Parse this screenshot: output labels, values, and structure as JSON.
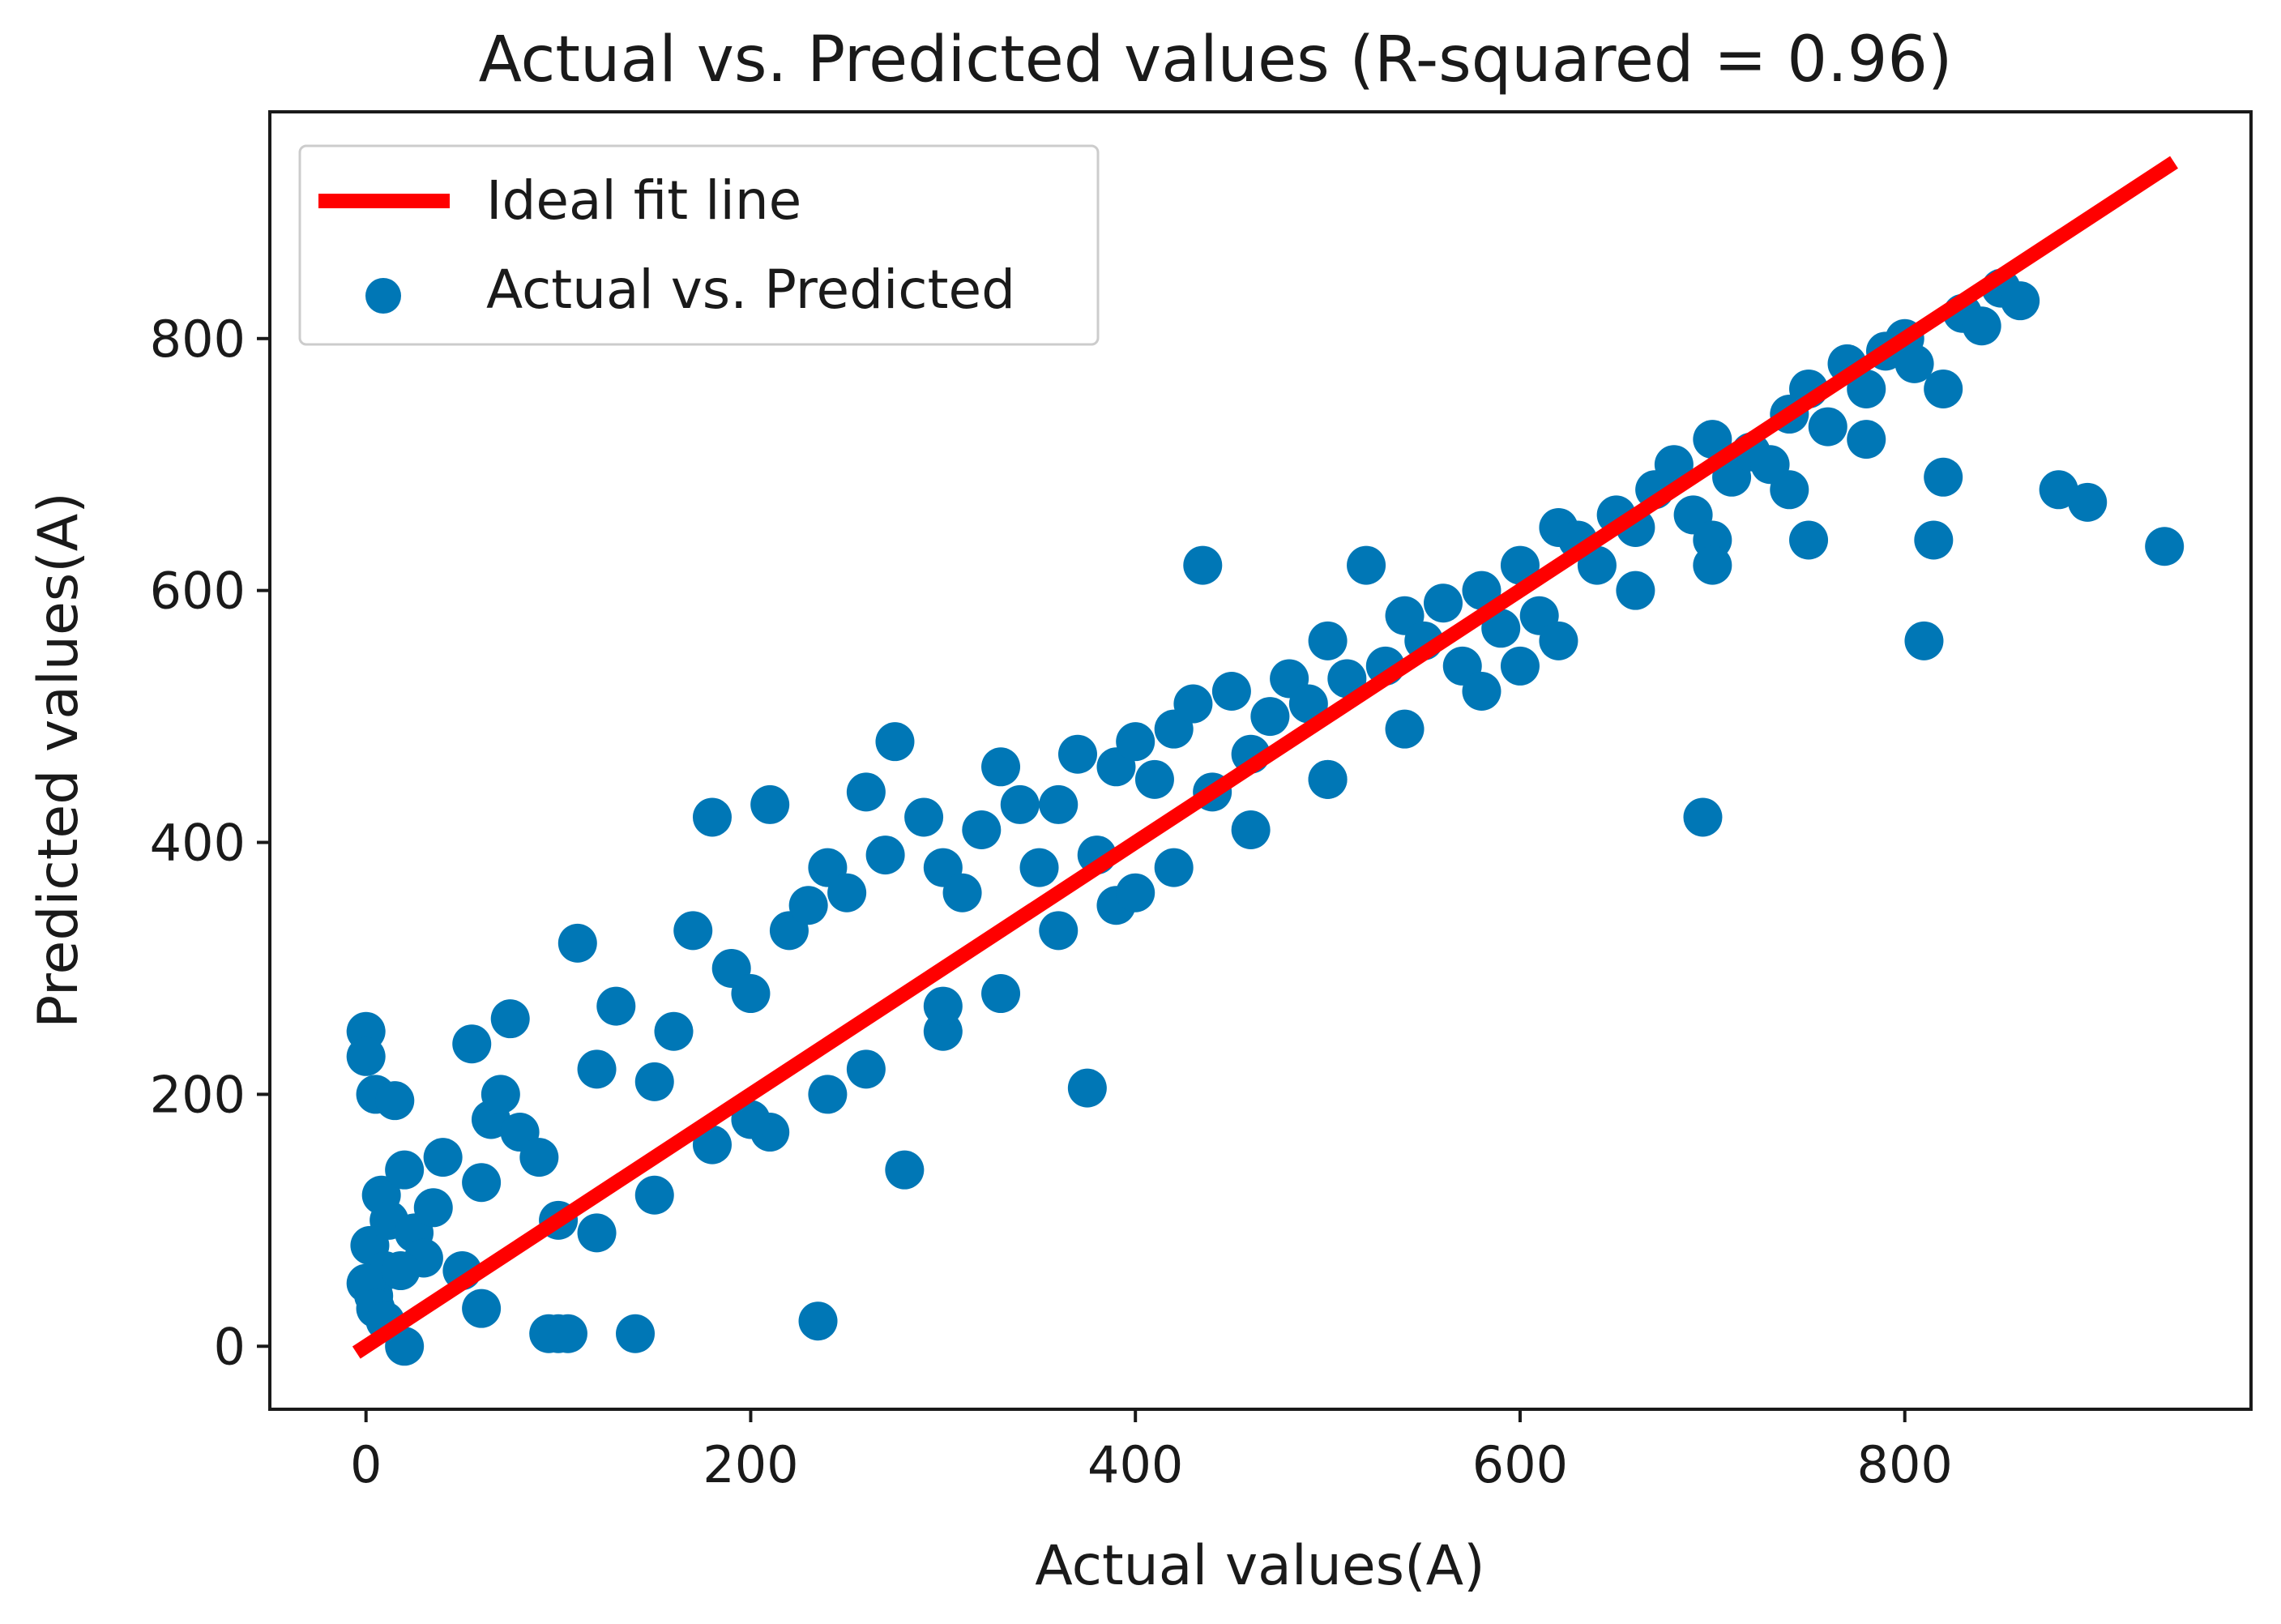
{
  "chart_data": {
    "type": "scatter",
    "title": "Actual vs. Predicted values (R-squared = 0.96)",
    "xlabel": "Actual values(A)",
    "ylabel": "Predicted values(A)",
    "xlim": [
      -50,
      980
    ],
    "ylim": [
      -50,
      980
    ],
    "xticks": [
      0,
      200,
      400,
      600,
      800
    ],
    "yticks": [
      0,
      200,
      400,
      600,
      800
    ],
    "grid": false,
    "legend_position": "top-left",
    "colors": {
      "points": "#0077b6",
      "fit_line": "#ff0000"
    },
    "series": [
      {
        "name": "Ideal fit line",
        "type": "line",
        "x": [
          -5,
          940
        ],
        "y": [
          -5,
          940
        ]
      },
      {
        "name": "Actual vs. Predicted",
        "type": "scatter",
        "x": [
          0,
          0,
          2,
          4,
          5,
          8,
          10,
          12,
          15,
          20,
          25,
          30,
          35,
          40,
          55,
          60,
          65,
          70,
          75,
          80,
          90,
          95,
          100,
          105,
          110,
          120,
          130,
          140,
          150,
          160,
          170,
          180,
          190,
          200,
          210,
          220,
          230,
          235,
          240,
          250,
          260,
          270,
          275,
          280,
          290,
          300,
          310,
          320,
          330,
          340,
          350,
          360,
          370,
          375,
          380,
          390,
          400,
          410,
          420,
          430,
          435,
          440,
          450,
          460,
          470,
          480,
          490,
          500,
          510,
          520,
          530,
          540,
          550,
          560,
          570,
          580,
          590,
          600,
          610,
          620,
          630,
          640,
          650,
          660,
          670,
          680,
          690,
          695,
          700,
          710,
          720,
          730,
          740,
          750,
          760,
          770,
          780,
          790,
          800,
          805,
          810,
          815,
          820,
          830,
          840,
          850,
          860,
          880,
          895,
          935,
          0,
          5,
          10,
          18,
          20,
          60,
          120,
          150,
          180,
          210,
          240,
          260,
          300,
          330,
          360,
          390,
          420,
          460,
          500,
          540,
          580,
          620,
          660,
          700,
          740,
          780,
          820,
          50,
          100,
          200,
          300,
          400,
          500,
          600,
          700,
          750
        ],
        "y": [
          250,
          230,
          80,
          40,
          200,
          120,
          60,
          100,
          195,
          140,
          90,
          70,
          110,
          150,
          240,
          130,
          180,
          200,
          260,
          170,
          150,
          10,
          10,
          10,
          320,
          220,
          270,
          10,
          210,
          250,
          330,
          420,
          300,
          280,
          430,
          330,
          350,
          20,
          380,
          360,
          440,
          390,
          480,
          140,
          420,
          380,
          360,
          410,
          460,
          430,
          380,
          430,
          470,
          205,
          390,
          460,
          480,
          450,
          490,
          510,
          620,
          440,
          520,
          470,
          500,
          530,
          510,
          560,
          530,
          620,
          540,
          580,
          560,
          590,
          540,
          600,
          570,
          620,
          580,
          650,
          640,
          620,
          660,
          650,
          680,
          700,
          660,
          420,
          720,
          690,
          710,
          700,
          740,
          760,
          730,
          780,
          760,
          790,
          800,
          780,
          560,
          640,
          690,
          820,
          810,
          840,
          830,
          680,
          670,
          635,
          50,
          30,
          20,
          60,
          0,
          30,
          90,
          120,
          160,
          170,
          200,
          220,
          250,
          280,
          330,
          350,
          380,
          410,
          450,
          490,
          520,
          560,
          600,
          640,
          680,
          720,
          760,
          60,
          100,
          180,
          270,
          360,
          450,
          540,
          620,
          640
        ]
      }
    ]
  }
}
